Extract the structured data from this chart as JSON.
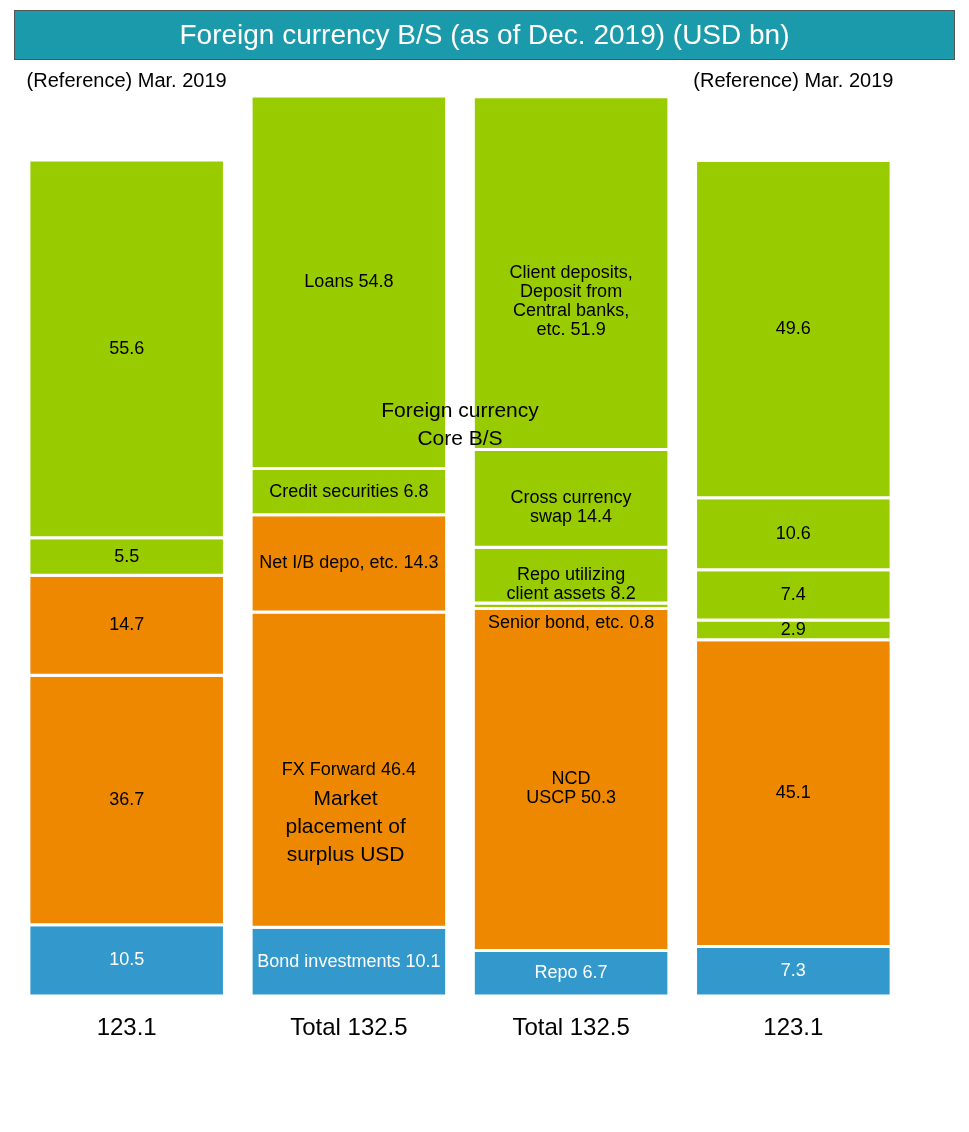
{
  "chart_data": {
    "type": "bar",
    "title": "Foreign currency B/S (as of Dec. 2019) (USD bn)",
    "categories": [
      "(Reference)\nMar. 2019",
      null,
      null,
      "(Reference)\nMar. 2019"
    ],
    "stacked": true,
    "series": [
      {
        "color": "#3399cc",
        "values": [
          10.5,
          10.1,
          6.7,
          7.3
        ],
        "value_labels": [
          "10.5",
          "Bond investments 10.1",
          "Repo        6.7",
          "7.3"
        ]
      },
      {
        "color": "#ee8800",
        "values": [
          36.7,
          46.4,
          50.3,
          45.1
        ],
        "value_labels": [
          "36.7",
          "FX Forward      46.4",
          "NCD\nUSCP        50.3",
          "45.1"
        ]
      },
      {
        "colors": [
          "#ee8800",
          "#ee8800",
          "#99cc00",
          "#99cc00"
        ],
        "values": [
          14.7,
          14.3,
          0.8,
          2.9
        ],
        "value_labels": [
          "14.7",
          "Net I/B depo, etc. 14.3",
          "Senior bond, etc. 0.8",
          "2.9"
        ]
      },
      {
        "color": "#99cc00",
        "values": [
          5.5,
          6.8,
          8.2,
          7.4
        ],
        "value_labels": [
          "5.5",
          "Credit securities 6.8",
          "Repo utilizing\nclient assets   8.2",
          "7.4"
        ]
      },
      {
        "color": "#99cc00",
        "values": [
          55.6,
          54.8,
          14.4,
          10.6
        ],
        "value_labels": [
          "55.6",
          "Loans        54.8",
          "Cross currency\nswap       14.4",
          "10.6"
        ]
      },
      {
        "color": "#99cc00",
        "values": [
          null,
          null,
          51.9,
          49.6
        ],
        "value_labels": [
          null,
          null,
          "Client deposits,\nDeposit from\nCentral banks,\netc.       51.9",
          "49.6"
        ]
      }
    ],
    "totals": [
      "123.1",
      "Total    132.5",
      "Total    132.5",
      "123.1"
    ],
    "annotations": [
      "Foreign currency\nCore B/S",
      "Market\nplacement of\nsurplus USD"
    ]
  }
}
